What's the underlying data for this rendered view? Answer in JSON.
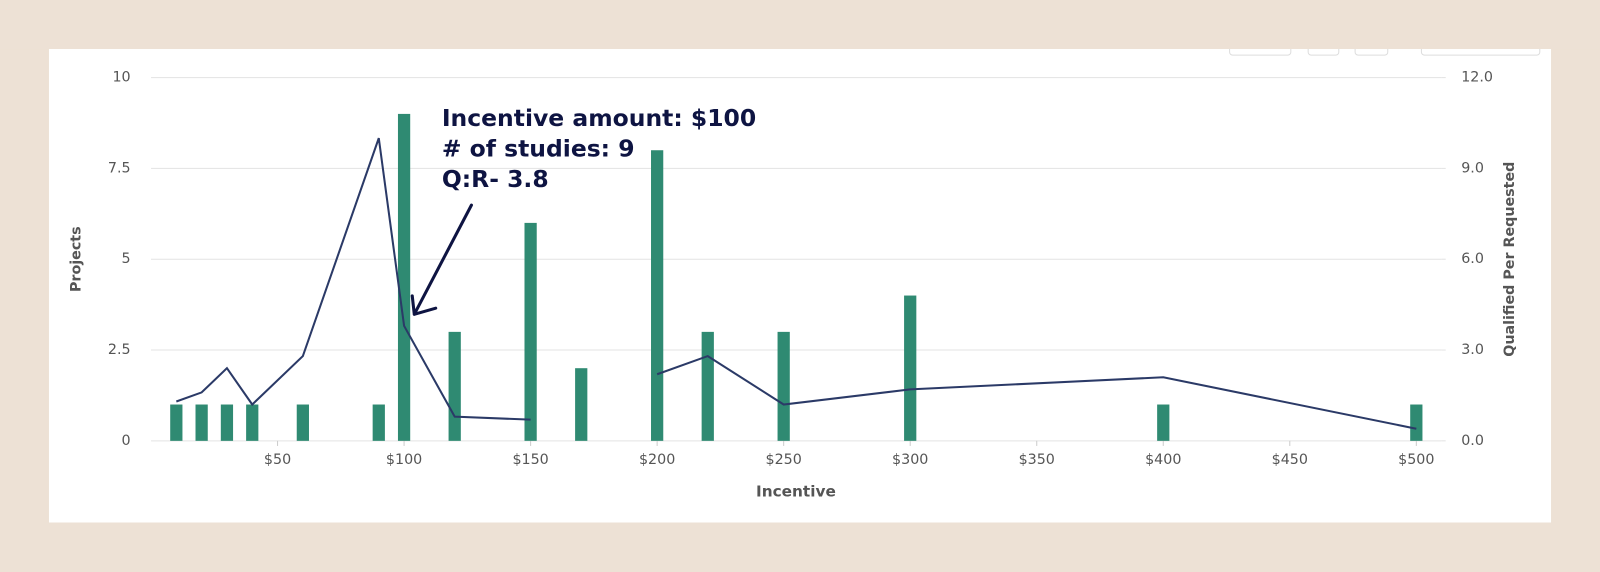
{
  "chart_data": {
    "type": "combo",
    "x_label": "Incentive",
    "y_label": "Projects",
    "y2_label": "Qualified Per Requested",
    "x": [
      10,
      20,
      30,
      40,
      60,
      90,
      100,
      120,
      150,
      170,
      200,
      220,
      250,
      300,
      400,
      500
    ],
    "series": [
      {
        "type": "bar",
        "color": "#2f8a72",
        "values": [
          1,
          1,
          1,
          1,
          1,
          1,
          9,
          3,
          6,
          2,
          8,
          3,
          3,
          4,
          1,
          1
        ]
      },
      {
        "type": "line",
        "axis": "y2",
        "color": "#2b3a67",
        "values": [
          1.3,
          1.6,
          2.4,
          1.2,
          2.8,
          10.0,
          3.8,
          0.8,
          0.7,
          null,
          2.2,
          2.8,
          1.2,
          1.7,
          2.1,
          0.4
        ]
      }
    ],
    "xlim": [
      0,
      510
    ],
    "xticks": [
      {
        "value": 50,
        "label": "$50"
      },
      {
        "value": 100,
        "label": "$100"
      },
      {
        "value": 150,
        "label": "$150"
      },
      {
        "value": 200,
        "label": "$200"
      },
      {
        "value": 250,
        "label": "$250"
      },
      {
        "value": 300,
        "label": "$300"
      },
      {
        "value": 350,
        "label": "$350"
      },
      {
        "value": 400,
        "label": "$400"
      },
      {
        "value": 450,
        "label": "$450"
      },
      {
        "value": 500,
        "label": "$500"
      }
    ],
    "ylim": [
      0,
      10
    ],
    "yticks": [
      0,
      2.5,
      5,
      7.5,
      10
    ],
    "y2lim": [
      0,
      12
    ],
    "y2ticks": [
      {
        "value": 0,
        "label": "0.0"
      },
      {
        "value": 3,
        "label": "3.0"
      },
      {
        "value": 6,
        "label": "6.0"
      },
      {
        "value": 9,
        "label": "9.0"
      },
      {
        "value": 12,
        "label": "12.0"
      }
    ],
    "grid": true,
    "annotation": [
      "Incentive amount: $100",
      "# of studies: 9",
      "Q:R- 3.8"
    ]
  }
}
